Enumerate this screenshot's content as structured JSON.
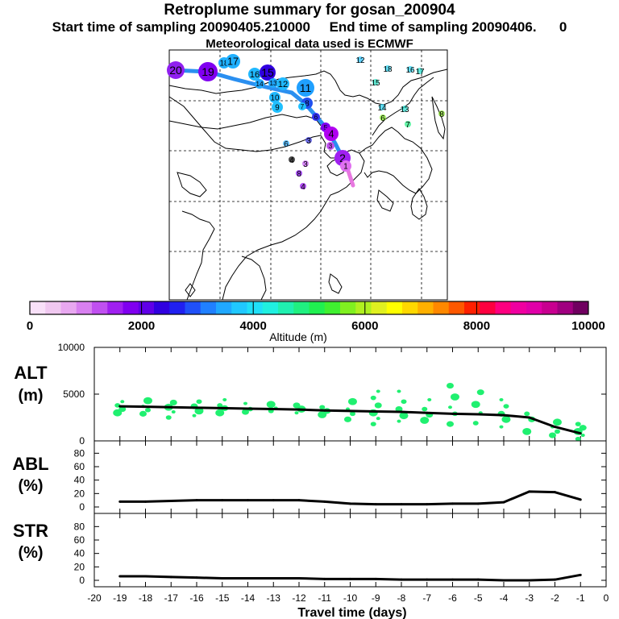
{
  "header": {
    "title": "Retroplume summary for gosan_200904",
    "start_label": "Start time of sampling 20090405.210000",
    "end_label": "End time of sampling 20090406.",
    "end_suffix": "0",
    "met_label": "Meteorological data used is ECMWF"
  },
  "colors": {
    "altitude_scale": [
      "#f8e0f8",
      "#f0c8f0",
      "#e8a8f0",
      "#d880f0",
      "#c050f0",
      "#a020f0",
      "#8000f0",
      "#6000e8",
      "#3000e0",
      "#2020f0",
      "#2050f8",
      "#2080ff",
      "#20a8ff",
      "#20c8ff",
      "#20e0f8",
      "#20f0e0",
      "#20f0b0",
      "#20f080",
      "#20f050",
      "#40f030",
      "#80f020",
      "#b0f020",
      "#e0f020",
      "#ffff00",
      "#ffd800",
      "#ffb000",
      "#ff8800",
      "#ff5800",
      "#ff2000",
      "#ff0040",
      "#ff0080",
      "#f000a0",
      "#e000a8",
      "#c80090",
      "#a00080",
      "#700060"
    ],
    "track_main": "#2a8ff0",
    "track_end": "#e878e0",
    "dot_green": "#20f070",
    "line": "#000000"
  },
  "map": {
    "track_labels": [
      "20",
      "19",
      "18",
      "17",
      "16",
      "15",
      "14",
      "13",
      "12",
      "11",
      "10",
      "9",
      "8",
      "7",
      "6",
      "5",
      "4",
      "3",
      "2",
      "1"
    ],
    "scatter_labels": [
      "12",
      "18",
      "16",
      "17",
      "15",
      "14",
      "13",
      "6",
      "7",
      "8",
      "6",
      "3",
      "4",
      "3",
      "8",
      "4"
    ]
  },
  "colorbar": {
    "ticks": [
      "0",
      "2000",
      "4000",
      "6000",
      "8000",
      "10000"
    ],
    "label": "Altitude  (m)"
  },
  "chart_data": [
    {
      "type": "line",
      "name": "ALT",
      "ylabel_top": "ALT",
      "ylabel_bottom": "(m)",
      "ylim": [
        0,
        10000
      ],
      "yticks": [
        "0",
        "5000",
        "10000"
      ],
      "x": [
        -19,
        -18,
        -17,
        -16,
        -15,
        -14,
        -13,
        -12,
        -11,
        -10,
        -9,
        -8,
        -7,
        -6,
        -5,
        -4,
        -3,
        -2,
        -1
      ],
      "values": [
        3700,
        3650,
        3600,
        3550,
        3500,
        3450,
        3400,
        3350,
        3250,
        3200,
        3150,
        3100,
        3000,
        2900,
        2850,
        2750,
        2500,
        1500,
        800
      ],
      "scatter": [
        {
          "x": -19,
          "y": [
            3000,
            3400,
            3800,
            4200
          ]
        },
        {
          "x": -18,
          "y": [
            2900,
            3300,
            3700,
            4300
          ]
        },
        {
          "x": -17,
          "y": [
            2500,
            3100,
            3600,
            4100
          ]
        },
        {
          "x": -16,
          "y": [
            2700,
            3200,
            3700,
            4200
          ]
        },
        {
          "x": -15,
          "y": [
            3000,
            3500,
            3800,
            4400
          ]
        },
        {
          "x": -14,
          "y": [
            3100,
            3400,
            4000
          ]
        },
        {
          "x": -13,
          "y": [
            3200,
            3500,
            3900
          ]
        },
        {
          "x": -12,
          "y": [
            3000,
            3400,
            3800
          ]
        },
        {
          "x": -11,
          "y": [
            2800,
            3200,
            3600
          ]
        },
        {
          "x": -10,
          "y": [
            2300,
            2900,
            3400,
            4200
          ]
        },
        {
          "x": -9,
          "y": [
            1800,
            2400,
            3000,
            3800,
            4600,
            5300
          ]
        },
        {
          "x": -8,
          "y": [
            2100,
            2700,
            3400,
            4200,
            5300
          ]
        },
        {
          "x": -7,
          "y": [
            2200,
            2800,
            3400,
            4400
          ]
        },
        {
          "x": -6,
          "y": [
            1800,
            2900,
            3600,
            4700,
            5900
          ]
        },
        {
          "x": -5,
          "y": [
            1900,
            3000,
            3900,
            5200
          ]
        },
        {
          "x": -4,
          "y": [
            1500,
            2300,
            2900,
            3700,
            4400
          ]
        },
        {
          "x": -3,
          "y": [
            1000,
            2300,
            2900
          ]
        },
        {
          "x": -2,
          "y": [
            600,
            1000,
            1500,
            2000
          ]
        },
        {
          "x": -1,
          "y": [
            200,
            600,
            1000,
            1400,
            1800
          ]
        }
      ]
    },
    {
      "type": "line",
      "name": "ABL",
      "ylabel_top": "ABL",
      "ylabel_bottom": "(%)",
      "ylim": [
        0,
        90
      ],
      "yticks": [
        "0",
        "20",
        "40",
        "60",
        "80"
      ],
      "x": [
        -19,
        -18,
        -17,
        -16,
        -15,
        -14,
        -13,
        -12,
        -11,
        -10,
        -9,
        -8,
        -7,
        -6,
        -5,
        -4,
        -3,
        -2,
        -1
      ],
      "values": [
        8,
        8,
        9,
        10,
        10,
        10,
        10,
        10,
        8,
        5,
        4,
        4,
        4,
        5,
        5,
        7,
        23,
        22,
        11
      ]
    },
    {
      "type": "line",
      "name": "STR",
      "ylabel_top": "STR",
      "ylabel_bottom": "(%)",
      "ylim": [
        0,
        90
      ],
      "yticks": [
        "0",
        "20",
        "40",
        "60",
        "80"
      ],
      "x": [
        -19,
        -18,
        -17,
        -16,
        -15,
        -14,
        -13,
        -12,
        -11,
        -10,
        -9,
        -8,
        -7,
        -6,
        -5,
        -4,
        -3,
        -2,
        -1
      ],
      "values": [
        6,
        6,
        5,
        4,
        3,
        3,
        3,
        3,
        2,
        2,
        2,
        1,
        1,
        1,
        1,
        0,
        0,
        1,
        8
      ]
    }
  ],
  "xaxis": {
    "ticks": [
      "-20",
      "-19",
      "-18",
      "-17",
      "-16",
      "-15",
      "-14",
      "-13",
      "-12",
      "-11",
      "-10",
      "-9",
      "-8",
      "-7",
      "-6",
      "-5",
      "-4",
      "-3",
      "-2",
      "-1",
      "0"
    ],
    "label": "Travel time (days)"
  }
}
